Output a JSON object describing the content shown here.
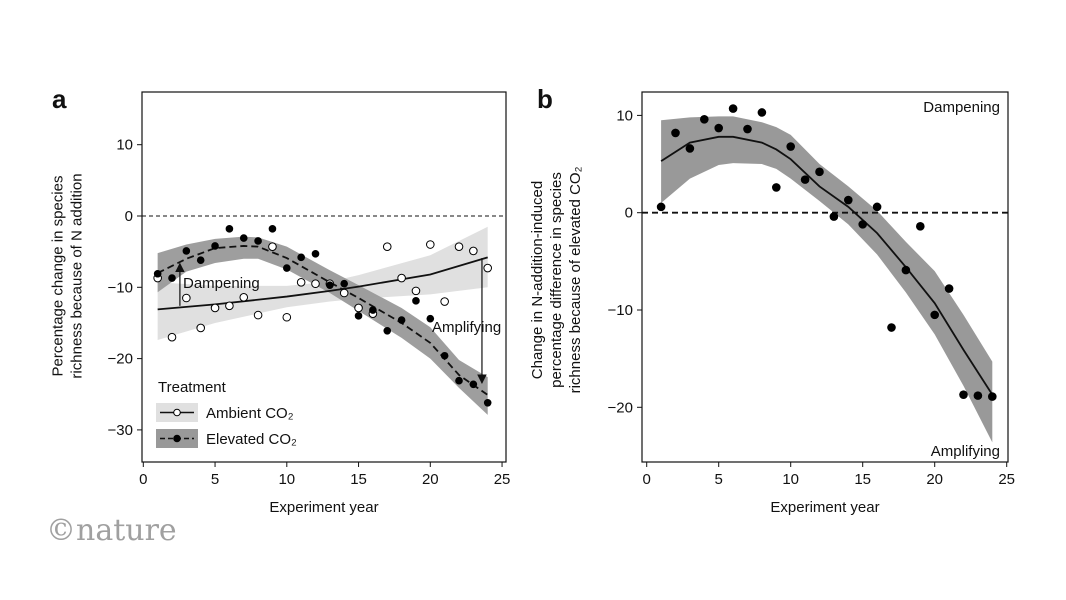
{
  "logo": "©nature",
  "chart_data": [
    {
      "panel": "a",
      "type": "scatter",
      "xlabel": "Experiment year",
      "ylabel": [
        "Percentage change in species",
        "richness because of N addition"
      ],
      "xlim": [
        0,
        25
      ],
      "ylim": [
        -34,
        17
      ],
      "xticks": [
        0,
        5,
        10,
        15,
        20,
        25
      ],
      "yticks": [
        10,
        0,
        -10,
        -20,
        -30
      ],
      "reference_line": 0,
      "legend": {
        "title": "Treatment",
        "placement": "bottom-left"
      },
      "annotations": [
        "Dampening",
        "Amplifying"
      ],
      "series": [
        {
          "name": "Ambient CO₂",
          "marker": "open-circle",
          "line": "solid",
          "band_color": "#e0e0e0",
          "x": [
            1,
            2,
            3,
            4,
            5,
            6,
            7,
            8,
            9,
            10,
            11,
            12,
            13,
            14,
            15,
            16,
            17,
            18,
            19,
            20,
            21,
            22,
            23,
            24
          ],
          "y": [
            -8.7,
            -17,
            -11.5,
            -15.7,
            -12.9,
            -12.6,
            -11.4,
            -13.9,
            -4.3,
            -14.2,
            -9.3,
            -9.5,
            -9.5,
            -10.8,
            -12.9,
            -13.7,
            -4.3,
            -8.7,
            -10.5,
            -4.0,
            -12.0,
            -4.3,
            -4.9,
            -7.3
          ],
          "fit": {
            "x": [
              1,
              5,
              10,
              13,
              15,
              20,
              24
            ],
            "y": [
              -13.1,
              -12.4,
              -11.3,
              -10.5,
              -9.9,
              -8.2,
              -5.8
            ],
            "lower": [
              -17.4,
              -15,
              -12.8,
              -12,
              -11.6,
              -11,
              -10
            ],
            "upper": [
              -9.3,
              -9.8,
              -9.8,
              -9.2,
              -8.3,
              -5.5,
              -1.5
            ]
          }
        },
        {
          "name": "Elevated CO₂",
          "marker": "filled-circle",
          "line": "dashed",
          "band_color": "#999999",
          "x": [
            1,
            2,
            3,
            4,
            5,
            6,
            7,
            8,
            9,
            10,
            11,
            12,
            13,
            14,
            15,
            16,
            17,
            18,
            19,
            20,
            21,
            22,
            23,
            24
          ],
          "y": [
            -8.1,
            -8.7,
            -4.9,
            -6.2,
            -4.2,
            -1.8,
            -3.1,
            -3.5,
            -1.8,
            -7.3,
            -5.8,
            -5.3,
            -9.7,
            -9.5,
            -14.0,
            -13.2,
            -16.1,
            -14.6,
            -11.9,
            -14.4,
            -19.6,
            -23.1,
            -23.6,
            -26.2
          ],
          "fit": {
            "x": [
              1,
              3,
              5,
              7,
              8,
              10,
              13,
              15,
              18,
              20,
              22,
              24
            ],
            "y": [
              -8.0,
              -6.0,
              -4.5,
              -4.2,
              -4.3,
              -5.9,
              -9.3,
              -11.5,
              -15,
              -17.8,
              -22.3,
              -25.1
            ],
            "lower": [
              -10.7,
              -7.8,
              -6.6,
              -6.0,
              -6.0,
              -7.5,
              -10.8,
              -13.3,
              -17.1,
              -20,
              -24.1,
              -27.9
            ],
            "upper": [
              -5.2,
              -4.0,
              -3.2,
              -2.9,
              -3.0,
              -4.3,
              -7.6,
              -9.7,
              -12.9,
              -15.6,
              -20.2,
              -22.6
            ]
          }
        }
      ]
    },
    {
      "panel": "b",
      "type": "scatter",
      "xlabel": "Experiment year",
      "ylabel": [
        "Change in N-addition-induced",
        "percentage difference in species",
        "richness because of elevated CO₂"
      ],
      "xlim": [
        0,
        25
      ],
      "ylim": [
        -25.6,
        12.3
      ],
      "xticks": [
        0,
        5,
        10,
        15,
        20,
        25
      ],
      "yticks": [
        10,
        0,
        -10,
        -20
      ],
      "reference_line": 0,
      "annotations": [
        "Dampening",
        "Amplifying"
      ],
      "series": [
        {
          "marker": "filled-circle",
          "line": "solid",
          "band_color": "#999999",
          "x": [
            1,
            2,
            3,
            4,
            5,
            6,
            7,
            8,
            9,
            10,
            11,
            12,
            13,
            14,
            15,
            16,
            17,
            18,
            19,
            20,
            21,
            22,
            23,
            24
          ],
          "y": [
            0.6,
            8.2,
            6.6,
            9.6,
            8.7,
            10.7,
            8.6,
            10.3,
            2.6,
            6.8,
            3.4,
            4.2,
            -0.4,
            1.3,
            -1.2,
            0.6,
            -11.8,
            -5.9,
            -1.4,
            -10.5,
            -7.8,
            -18.7,
            -18.8,
            -18.9
          ],
          "fit": {
            "x": [
              1,
              3,
              5,
              6,
              8,
              9,
              10,
              12,
              14,
              16,
              18,
              20,
              22,
              24
            ],
            "y": [
              5.3,
              7.2,
              7.8,
              7.8,
              7.2,
              6.5,
              5.5,
              2.7,
              0.6,
              -2.1,
              -5.6,
              -9.3,
              -14.1,
              -18.7
            ],
            "lower": [
              1,
              3.5,
              4.9,
              5.1,
              5,
              4.5,
              3.5,
              1.2,
              -1.2,
              -4.3,
              -8.2,
              -12.5,
              -17.8,
              -23.6
            ],
            "upper": [
              9.5,
              9.8,
              9.9,
              9.9,
              9.3,
              8.8,
              8,
              5,
              2.7,
              0.2,
              -3,
              -6,
              -10.5,
              -15.3
            ]
          }
        }
      ]
    }
  ]
}
